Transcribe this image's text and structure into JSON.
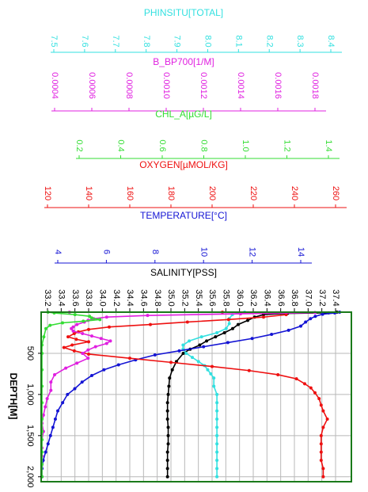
{
  "chart_data": {
    "type": "line",
    "depth_axis": {
      "label": "DEPTH[M]",
      "ticks": [
        500,
        1000,
        1500,
        2000
      ],
      "tick_labels": [
        "500",
        "1,000",
        "1,500",
        "2,000"
      ],
      "range": [
        0,
        2060
      ],
      "inverted": true
    },
    "grid": true,
    "axes": [
      {
        "key": "phinsitu",
        "label": "PHINSITU[TOTAL]",
        "color": "#33e0e0",
        "ticks": [
          7.5,
          7.6,
          7.7,
          7.8,
          7.9,
          8.0,
          8.1,
          8.2,
          8.3,
          8.4
        ],
        "tick_labels": [
          "7.5",
          "7.6",
          "7.7",
          "7.8",
          "7.9",
          "8.0",
          "8.1",
          "8.2",
          "8.3",
          "8.4"
        ]
      },
      {
        "key": "bbp700",
        "label": "B_BP700[1/M]",
        "color": "#e020e0",
        "ticks": [
          0.0004,
          0.0006,
          0.0008,
          0.001,
          0.0012,
          0.0014,
          0.0016,
          0.0018
        ],
        "tick_labels": [
          "0.0004",
          "0.0006",
          "0.0008",
          "0.0010",
          "0.0012",
          "0.0014",
          "0.0016",
          "0.0018"
        ]
      },
      {
        "key": "chl",
        "label": "CHL_A[µG/L]",
        "color": "#33dd33",
        "ticks": [
          0.2,
          0.4,
          0.6,
          0.8,
          1.0,
          1.2,
          1.4
        ],
        "tick_labels": [
          "0.2",
          "0.4",
          "0.6",
          "0.8",
          "1.0",
          "1.2",
          "1.4"
        ]
      },
      {
        "key": "oxygen",
        "label": "OXYGEN[µMOL/KG]",
        "color": "#ee1111",
        "ticks": [
          120,
          140,
          160,
          180,
          200,
          220,
          240,
          260
        ],
        "tick_labels": [
          "120",
          "140",
          "160",
          "180",
          "200",
          "220",
          "240",
          "260"
        ]
      },
      {
        "key": "temperature",
        "label": "TEMPERATURE[°C]",
        "color": "#1414d4",
        "ticks": [
          4,
          6,
          8,
          10,
          12,
          14
        ],
        "tick_labels": [
          "4",
          "6",
          "8",
          "10",
          "12",
          "14"
        ]
      },
      {
        "key": "salinity",
        "label": "SALINITY[PSS]",
        "color": "#000000",
        "ticks": [
          33.2,
          33.4,
          33.6,
          33.8,
          34.0,
          34.2,
          34.4,
          34.6,
          34.8,
          35.0,
          35.2,
          35.4,
          35.6,
          35.8,
          36.0,
          36.2,
          36.4,
          36.6,
          36.8,
          37.0,
          37.2,
          37.4
        ],
        "tick_labels": [
          "33.2",
          "33.4",
          "33.6",
          "33.8",
          "34.0",
          "34.2",
          "34.4",
          "34.6",
          "34.8",
          "35.0",
          "35.2",
          "35.4",
          "35.6",
          "35.8",
          "36.0",
          "36.2",
          "36.4",
          "36.6",
          "36.8",
          "37.0",
          "37.2",
          "37.4"
        ]
      }
    ],
    "series": [
      {
        "key": "salinity",
        "color": "#000000",
        "points": [
          [
            37.42,
            0
          ],
          [
            37.3,
            8
          ],
          [
            36.7,
            15
          ],
          [
            36.35,
            30
          ],
          [
            36.22,
            60
          ],
          [
            36.12,
            100
          ],
          [
            35.98,
            150
          ],
          [
            35.9,
            200
          ],
          [
            35.78,
            250
          ],
          [
            35.65,
            300
          ],
          [
            35.52,
            350
          ],
          [
            35.42,
            400
          ],
          [
            35.28,
            450
          ],
          [
            35.18,
            500
          ],
          [
            35.08,
            600
          ],
          [
            35.02,
            700
          ],
          [
            34.98,
            800
          ],
          [
            34.97,
            900
          ],
          [
            34.96,
            1000
          ],
          [
            34.95,
            1100
          ],
          [
            34.95,
            1200
          ],
          [
            34.95,
            1300
          ],
          [
            34.96,
            1400
          ],
          [
            34.96,
            1500
          ],
          [
            34.96,
            1600
          ],
          [
            34.95,
            1700
          ],
          [
            34.95,
            1800
          ],
          [
            34.95,
            1900
          ],
          [
            34.95,
            2000
          ]
        ]
      },
      {
        "key": "phinsitu",
        "color": "#33e0e0",
        "points": [
          [
            8.12,
            0
          ],
          [
            8.1,
            10
          ],
          [
            8.08,
            30
          ],
          [
            8.07,
            80
          ],
          [
            8.07,
            140
          ],
          [
            8.06,
            200
          ],
          [
            8.03,
            250
          ],
          [
            7.98,
            300
          ],
          [
            7.94,
            350
          ],
          [
            7.92,
            400
          ],
          [
            7.92,
            450
          ],
          [
            7.93,
            500
          ],
          [
            7.95,
            550
          ],
          [
            7.97,
            600
          ],
          [
            7.99,
            650
          ],
          [
            8.0,
            700
          ],
          [
            8.01,
            750
          ],
          [
            8.02,
            800
          ],
          [
            8.02,
            900
          ],
          [
            8.03,
            1000
          ],
          [
            8.03,
            1100
          ],
          [
            8.03,
            1200
          ],
          [
            8.03,
            1300
          ],
          [
            8.03,
            1400
          ],
          [
            8.03,
            1500
          ],
          [
            8.03,
            1600
          ],
          [
            8.03,
            1700
          ],
          [
            8.03,
            1800
          ],
          [
            8.03,
            1900
          ],
          [
            8.03,
            2000
          ]
        ]
      },
      {
        "key": "temperature",
        "color": "#1414d4",
        "points": [
          [
            15.6,
            0
          ],
          [
            15.4,
            10
          ],
          [
            14.9,
            25
          ],
          [
            14.6,
            50
          ],
          [
            14.4,
            80
          ],
          [
            14.2,
            120
          ],
          [
            14.0,
            170
          ],
          [
            13.5,
            220
          ],
          [
            12.8,
            270
          ],
          [
            12.0,
            320
          ],
          [
            11.0,
            370
          ],
          [
            10.0,
            420
          ],
          [
            9.0,
            470
          ],
          [
            8.0,
            520
          ],
          [
            7.2,
            580
          ],
          [
            6.5,
            640
          ],
          [
            5.9,
            700
          ],
          [
            5.4,
            770
          ],
          [
            5.0,
            850
          ],
          [
            4.7,
            930
          ],
          [
            4.4,
            1000
          ],
          [
            4.2,
            1100
          ],
          [
            4.0,
            1200
          ],
          [
            3.9,
            1300
          ],
          [
            3.8,
            1400
          ],
          [
            3.7,
            1500
          ],
          [
            3.6,
            1600
          ],
          [
            3.5,
            1700
          ],
          [
            3.4,
            1800
          ],
          [
            3.3,
            1900
          ],
          [
            3.3,
            2000
          ]
        ]
      },
      {
        "key": "oxygen",
        "color": "#ee1111",
        "points": [
          [
            205,
            0
          ],
          [
            236,
            10
          ],
          [
            236,
            30
          ],
          [
            225,
            60
          ],
          [
            208,
            90
          ],
          [
            188,
            120
          ],
          [
            170,
            150
          ],
          [
            150,
            180
          ],
          [
            140,
            210
          ],
          [
            135,
            240
          ],
          [
            133,
            260
          ],
          [
            130,
            300
          ],
          [
            134,
            330
          ],
          [
            140,
            360
          ],
          [
            132,
            400
          ],
          [
            128,
            430
          ],
          [
            133,
            470
          ],
          [
            140,
            510
          ],
          [
            160,
            560
          ],
          [
            180,
            610
          ],
          [
            200,
            660
          ],
          [
            218,
            710
          ],
          [
            232,
            760
          ],
          [
            241,
            810
          ],
          [
            245,
            870
          ],
          [
            248,
            920
          ],
          [
            250,
            980
          ],
          [
            252,
            1050
          ],
          [
            253,
            1130
          ],
          [
            254,
            1200
          ],
          [
            256,
            1300
          ],
          [
            254,
            1400
          ],
          [
            253,
            1500
          ],
          [
            253,
            1600
          ],
          [
            253,
            1700
          ],
          [
            253,
            1800
          ],
          [
            254,
            1900
          ],
          [
            254,
            2000
          ]
        ]
      },
      {
        "key": "bbp700",
        "color": "#e020e0",
        "points": [
          [
            0.00048,
            0
          ],
          [
            0.0018,
            5
          ],
          [
            0.0014,
            20
          ],
          [
            0.0009,
            40
          ],
          [
            0.00068,
            60
          ],
          [
            0.00061,
            80
          ],
          [
            0.00058,
            100
          ],
          [
            0.00056,
            120
          ],
          [
            0.00052,
            150
          ],
          [
            0.0005,
            180
          ],
          [
            0.00049,
            200
          ],
          [
            0.0005,
            230
          ],
          [
            0.00055,
            260
          ],
          [
            0.0006,
            290
          ],
          [
            0.00065,
            320
          ],
          [
            0.0007,
            350
          ],
          [
            0.00068,
            380
          ],
          [
            0.00062,
            420
          ],
          [
            0.00058,
            460
          ],
          [
            0.00055,
            500
          ],
          [
            0.00058,
            560
          ],
          [
            0.00052,
            620
          ],
          [
            0.00046,
            680
          ],
          [
            0.0004,
            760
          ],
          [
            0.00038,
            850
          ],
          [
            0.00038,
            950
          ],
          [
            0.00036,
            1050
          ],
          [
            0.00035,
            1150
          ],
          [
            0.00034,
            1250
          ],
          [
            0.00033,
            1350
          ],
          [
            0.00034,
            1450
          ],
          [
            0.00033,
            1550
          ],
          [
            0.00033,
            1650
          ],
          [
            0.00033,
            1750
          ],
          [
            0.00033,
            1850
          ],
          [
            0.00033,
            2000
          ]
        ]
      },
      {
        "key": "chl",
        "color": "#33dd33",
        "points": [
          [
            0.05,
            0
          ],
          [
            0.08,
            10
          ],
          [
            0.18,
            30
          ],
          [
            0.25,
            50
          ],
          [
            0.26,
            70
          ],
          [
            0.3,
            90
          ],
          [
            0.22,
            110
          ],
          [
            0.12,
            130
          ],
          [
            0.06,
            160
          ],
          [
            0.04,
            200
          ],
          [
            0.03,
            300
          ],
          [
            0.02,
            400
          ],
          [
            0.02,
            500
          ],
          [
            0.02,
            700
          ],
          [
            0.02,
            900
          ],
          [
            0.02,
            1100
          ],
          [
            0.02,
            1300
          ],
          [
            0.0,
            1450
          ],
          [
            0.02,
            1550
          ],
          [
            0.02,
            1700
          ],
          [
            0.02,
            1850
          ],
          [
            0.02,
            2000
          ]
        ]
      }
    ]
  }
}
